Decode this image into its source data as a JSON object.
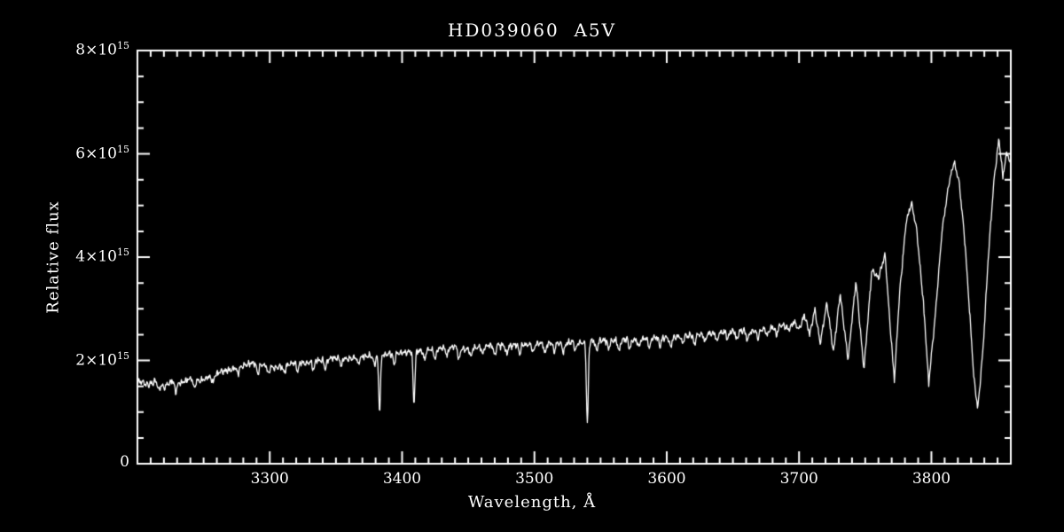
{
  "page": {
    "background": "#000000",
    "foreground": "#ffffff"
  },
  "chart_data": {
    "type": "line",
    "title": "HD039060  A5V",
    "xlabel": "Wavelength, Å",
    "ylabel": "Relative flux",
    "xlim": [
      3200,
      3860
    ],
    "ylim": [
      0,
      8000000000000000.0
    ],
    "flux_unit": 1000000000000000.0,
    "grid": false,
    "legend": "none",
    "line_color": "#ffffff",
    "axis_color": "#ffffff",
    "background": "#000000",
    "x_ticks": [
      3300,
      3400,
      3500,
      3600,
      3700,
      3800
    ],
    "x_minor_tick_step": 10,
    "y_ticks": [
      0,
      2000000000000000.0,
      4000000000000000.0,
      6000000000000000.0,
      8000000000000000.0
    ],
    "y_tick_labels": [
      {
        "text": "0"
      },
      {
        "text": "2×10",
        "sup": "15"
      },
      {
        "text": "4×10",
        "sup": "15"
      },
      {
        "text": "6×10",
        "sup": "15"
      },
      {
        "text": "8×10",
        "sup": "15"
      }
    ],
    "y_minor_tick_step": 500000000000000.0,
    "continuum_envelope_1e15": [
      [
        3200,
        1.62
      ],
      [
        3208,
        1.52
      ],
      [
        3214,
        1.6
      ],
      [
        3220,
        1.48
      ],
      [
        3226,
        1.6
      ],
      [
        3232,
        1.55
      ],
      [
        3240,
        1.65
      ],
      [
        3248,
        1.6
      ],
      [
        3256,
        1.7
      ],
      [
        3264,
        1.78
      ],
      [
        3272,
        1.84
      ],
      [
        3280,
        1.9
      ],
      [
        3288,
        1.95
      ],
      [
        3296,
        1.9
      ],
      [
        3304,
        1.86
      ],
      [
        3312,
        1.9
      ],
      [
        3320,
        1.97
      ],
      [
        3328,
        1.94
      ],
      [
        3336,
        2.0
      ],
      [
        3344,
        2.03
      ],
      [
        3352,
        2.05
      ],
      [
        3360,
        2.03
      ],
      [
        3368,
        2.07
      ],
      [
        3376,
        2.09
      ],
      [
        3384,
        2.1
      ],
      [
        3392,
        2.13
      ],
      [
        3400,
        2.15
      ],
      [
        3408,
        2.17
      ],
      [
        3416,
        2.19
      ],
      [
        3424,
        2.21
      ],
      [
        3432,
        2.24
      ],
      [
        3440,
        2.27
      ],
      [
        3448,
        2.22
      ],
      [
        3456,
        2.25
      ],
      [
        3464,
        2.28
      ],
      [
        3472,
        2.3
      ],
      [
        3480,
        2.28
      ],
      [
        3488,
        2.31
      ],
      [
        3496,
        2.3
      ],
      [
        3504,
        2.33
      ],
      [
        3512,
        2.34
      ],
      [
        3520,
        2.33
      ],
      [
        3528,
        2.35
      ],
      [
        3536,
        2.34
      ],
      [
        3544,
        2.37
      ],
      [
        3552,
        2.39
      ],
      [
        3560,
        2.38
      ],
      [
        3568,
        2.41
      ],
      [
        3576,
        2.4
      ],
      [
        3584,
        2.42
      ],
      [
        3592,
        2.44
      ],
      [
        3600,
        2.43
      ],
      [
        3608,
        2.46
      ],
      [
        3616,
        2.48
      ],
      [
        3624,
        2.5
      ],
      [
        3632,
        2.52
      ],
      [
        3640,
        2.54
      ],
      [
        3648,
        2.55
      ],
      [
        3656,
        2.58
      ],
      [
        3664,
        2.56
      ],
      [
        3672,
        2.6
      ],
      [
        3680,
        2.63
      ],
      [
        3688,
        2.68
      ],
      [
        3692,
        2.6
      ],
      [
        3696,
        2.75
      ],
      [
        3700,
        2.6
      ],
      [
        3704,
        2.88
      ],
      [
        3708,
        2.5
      ],
      [
        3712,
        2.98
      ],
      [
        3716,
        2.32
      ],
      [
        3721,
        3.12
      ],
      [
        3726,
        2.15
      ],
      [
        3731,
        3.3
      ],
      [
        3737,
        2.0
      ],
      [
        3743,
        3.55
      ],
      [
        3749,
        1.82
      ],
      [
        3755,
        3.75
      ],
      [
        3760,
        3.6
      ],
      [
        3765,
        4.05
      ],
      [
        3769,
        2.6
      ],
      [
        3772,
        1.62
      ],
      [
        3776,
        3.3
      ],
      [
        3781,
        4.7
      ],
      [
        3785,
        5.05
      ],
      [
        3789,
        4.5
      ],
      [
        3794,
        3.1
      ],
      [
        3798,
        1.55
      ],
      [
        3803,
        2.9
      ],
      [
        3808,
        4.5
      ],
      [
        3813,
        5.4
      ],
      [
        3817,
        5.85
      ],
      [
        3821,
        5.45
      ],
      [
        3825,
        4.4
      ],
      [
        3829,
        2.9
      ],
      [
        3832,
        1.7
      ],
      [
        3835,
        1.05
      ],
      [
        3839,
        2.2
      ],
      [
        3843,
        4.0
      ],
      [
        3847,
        5.4
      ],
      [
        3851,
        6.3
      ],
      [
        3854,
        5.55
      ],
      [
        3857,
        6.05
      ],
      [
        3860,
        5.75
      ]
    ],
    "absorption_lines_1e15": [
      [
        3383,
        1.05,
        0.7
      ],
      [
        3409,
        1.0,
        0.7
      ],
      [
        3540,
        1.57,
        0.7
      ],
      [
        3216,
        0.14,
        0.8
      ],
      [
        3229,
        0.18,
        0.8
      ],
      [
        3243,
        0.16,
        0.8
      ],
      [
        3257,
        0.15,
        0.8
      ],
      [
        3276,
        0.14,
        0.8
      ],
      [
        3291,
        0.2,
        0.8
      ],
      [
        3299,
        0.16,
        0.8
      ],
      [
        3311,
        0.14,
        0.8
      ],
      [
        3321,
        0.18,
        0.8
      ],
      [
        3333,
        0.15,
        0.8
      ],
      [
        3342,
        0.2,
        0.8
      ],
      [
        3354,
        0.16,
        0.8
      ],
      [
        3367,
        0.14,
        0.8
      ],
      [
        3379,
        0.18,
        0.8
      ],
      [
        3394,
        0.22,
        0.8
      ],
      [
        3417,
        0.18,
        0.8
      ],
      [
        3425,
        0.2,
        0.8
      ],
      [
        3434,
        0.16,
        0.8
      ],
      [
        3443,
        0.25,
        0.8
      ],
      [
        3452,
        0.18,
        0.8
      ],
      [
        3461,
        0.15,
        0.8
      ],
      [
        3470,
        0.2,
        0.8
      ],
      [
        3479,
        0.16,
        0.8
      ],
      [
        3489,
        0.18,
        0.8
      ],
      [
        3499,
        0.15,
        0.8
      ],
      [
        3508,
        0.2,
        0.8
      ],
      [
        3515,
        0.16,
        0.8
      ],
      [
        3522,
        0.18,
        0.8
      ],
      [
        3531,
        0.15,
        0.8
      ],
      [
        3547,
        0.2,
        0.8
      ],
      [
        3556,
        0.16,
        0.8
      ],
      [
        3564,
        0.22,
        0.8
      ],
      [
        3572,
        0.18,
        0.8
      ],
      [
        3579,
        0.15,
        0.8
      ],
      [
        3587,
        0.2,
        0.8
      ],
      [
        3595,
        0.16,
        0.8
      ],
      [
        3603,
        0.18,
        0.8
      ],
      [
        3612,
        0.15,
        0.8
      ],
      [
        3621,
        0.2,
        0.8
      ],
      [
        3629,
        0.16,
        0.8
      ],
      [
        3638,
        0.18,
        0.8
      ],
      [
        3646,
        0.15,
        0.8
      ],
      [
        3653,
        0.18,
        0.8
      ],
      [
        3661,
        0.2,
        0.8
      ],
      [
        3669,
        0.16,
        0.8
      ],
      [
        3676,
        0.14,
        0.8
      ],
      [
        3683,
        0.16,
        0.8
      ]
    ],
    "noise": {
      "jitter_1e15": 0.05,
      "seed": 42
    }
  }
}
